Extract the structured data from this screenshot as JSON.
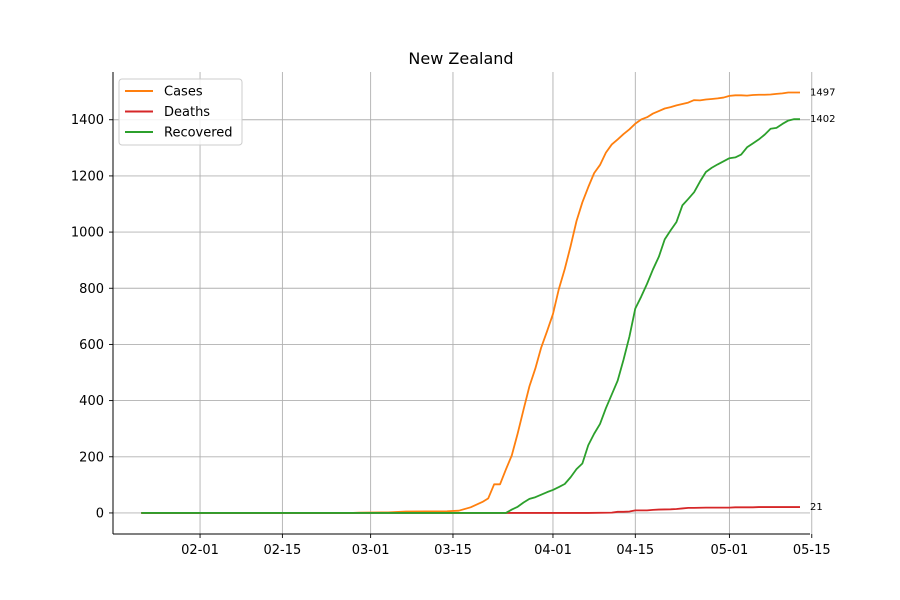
{
  "chart_data": {
    "type": "line",
    "title": "New Zealand",
    "xlabel": "",
    "ylabel": "",
    "grid": true,
    "legend_position": "top-left",
    "x_ticks": [
      "02-01",
      "02-15",
      "03-01",
      "03-15",
      "04-01",
      "04-15",
      "05-01",
      "05-15"
    ],
    "y_ticks": [
      0,
      200,
      400,
      600,
      800,
      1000,
      1200,
      1400
    ],
    "end_labels": [
      "1497",
      "1402",
      "21"
    ],
    "x_range": [
      "2020-01-22",
      "2020-05-14"
    ],
    "ylim": [
      -75,
      1570
    ],
    "series": [
      {
        "name": "Cases",
        "color": "#ff7f0e",
        "points": [
          [
            "2020-01-22",
            0
          ],
          [
            "2020-02-27",
            0
          ],
          [
            "2020-02-28",
            1
          ],
          [
            "2020-03-04",
            2
          ],
          [
            "2020-03-07",
            5
          ],
          [
            "2020-03-14",
            6
          ],
          [
            "2020-03-16",
            8
          ],
          [
            "2020-03-18",
            20
          ],
          [
            "2020-03-20",
            39
          ],
          [
            "2020-03-21",
            52
          ],
          [
            "2020-03-22",
            102
          ],
          [
            "2020-03-23",
            102
          ],
          [
            "2020-03-24",
            155
          ],
          [
            "2020-03-25",
            205
          ],
          [
            "2020-03-26",
            283
          ],
          [
            "2020-03-27",
            368
          ],
          [
            "2020-03-28",
            451
          ],
          [
            "2020-03-29",
            514
          ],
          [
            "2020-03-30",
            589
          ],
          [
            "2020-03-31",
            647
          ],
          [
            "2020-04-01",
            708
          ],
          [
            "2020-04-02",
            797
          ],
          [
            "2020-04-03",
            868
          ],
          [
            "2020-04-04",
            950
          ],
          [
            "2020-04-05",
            1039
          ],
          [
            "2020-04-06",
            1106
          ],
          [
            "2020-04-07",
            1160
          ],
          [
            "2020-04-08",
            1210
          ],
          [
            "2020-04-09",
            1239
          ],
          [
            "2020-04-10",
            1283
          ],
          [
            "2020-04-11",
            1312
          ],
          [
            "2020-04-12",
            1330
          ],
          [
            "2020-04-13",
            1349
          ],
          [
            "2020-04-14",
            1366
          ],
          [
            "2020-04-15",
            1386
          ],
          [
            "2020-04-16",
            1401
          ],
          [
            "2020-04-17",
            1409
          ],
          [
            "2020-04-18",
            1422
          ],
          [
            "2020-04-19",
            1431
          ],
          [
            "2020-04-20",
            1440
          ],
          [
            "2020-04-21",
            1445
          ],
          [
            "2020-04-22",
            1451
          ],
          [
            "2020-04-23",
            1456
          ],
          [
            "2020-04-24",
            1461
          ],
          [
            "2020-04-25",
            1470
          ],
          [
            "2020-04-26",
            1469
          ],
          [
            "2020-04-27",
            1472
          ],
          [
            "2020-04-28",
            1474
          ],
          [
            "2020-04-29",
            1476
          ],
          [
            "2020-04-30",
            1479
          ],
          [
            "2020-05-01",
            1485
          ],
          [
            "2020-05-02",
            1487
          ],
          [
            "2020-05-03",
            1487
          ],
          [
            "2020-05-04",
            1486
          ],
          [
            "2020-05-05",
            1488
          ],
          [
            "2020-05-06",
            1489
          ],
          [
            "2020-05-07",
            1489
          ],
          [
            "2020-05-08",
            1490
          ],
          [
            "2020-05-09",
            1492
          ],
          [
            "2020-05-10",
            1494
          ],
          [
            "2020-05-11",
            1497
          ],
          [
            "2020-05-12",
            1497
          ],
          [
            "2020-05-13",
            1497
          ]
        ]
      },
      {
        "name": "Deaths",
        "color": "#d62728",
        "points": [
          [
            "2020-01-22",
            0
          ],
          [
            "2020-04-07",
            0
          ],
          [
            "2020-04-11",
            1
          ],
          [
            "2020-04-12",
            4
          ],
          [
            "2020-04-13",
            4
          ],
          [
            "2020-04-14",
            5
          ],
          [
            "2020-04-15",
            9
          ],
          [
            "2020-04-17",
            9
          ],
          [
            "2020-04-18",
            11
          ],
          [
            "2020-04-19",
            12
          ],
          [
            "2020-04-21",
            13
          ],
          [
            "2020-04-22",
            14
          ],
          [
            "2020-04-23",
            16
          ],
          [
            "2020-04-24",
            18
          ],
          [
            "2020-04-25",
            18
          ],
          [
            "2020-04-27",
            19
          ],
          [
            "2020-05-01",
            19
          ],
          [
            "2020-05-02",
            20
          ],
          [
            "2020-05-05",
            20
          ],
          [
            "2020-05-06",
            21
          ],
          [
            "2020-05-13",
            21
          ]
        ]
      },
      {
        "name": "Recovered",
        "color": "#2ca02c",
        "points": [
          [
            "2020-01-22",
            0
          ],
          [
            "2020-03-24",
            0
          ],
          [
            "2020-03-25",
            12
          ],
          [
            "2020-03-26",
            22
          ],
          [
            "2020-03-27",
            37
          ],
          [
            "2020-03-28",
            50
          ],
          [
            "2020-03-29",
            56
          ],
          [
            "2020-03-30",
            65
          ],
          [
            "2020-03-31",
            74
          ],
          [
            "2020-04-01",
            82
          ],
          [
            "2020-04-02",
            92
          ],
          [
            "2020-04-03",
            103
          ],
          [
            "2020-04-04",
            127
          ],
          [
            "2020-04-05",
            156
          ],
          [
            "2020-04-06",
            176
          ],
          [
            "2020-04-07",
            241
          ],
          [
            "2020-04-08",
            282
          ],
          [
            "2020-04-09",
            317
          ],
          [
            "2020-04-10",
            373
          ],
          [
            "2020-04-11",
            422
          ],
          [
            "2020-04-12",
            471
          ],
          [
            "2020-04-13",
            546
          ],
          [
            "2020-04-14",
            628
          ],
          [
            "2020-04-15",
            728
          ],
          [
            "2020-04-16",
            770
          ],
          [
            "2020-04-17",
            816
          ],
          [
            "2020-04-18",
            867
          ],
          [
            "2020-04-19",
            912
          ],
          [
            "2020-04-20",
            974
          ],
          [
            "2020-04-21",
            1006
          ],
          [
            "2020-04-22",
            1036
          ],
          [
            "2020-04-23",
            1095
          ],
          [
            "2020-04-24",
            1118
          ],
          [
            "2020-04-25",
            1142
          ],
          [
            "2020-04-26",
            1180
          ],
          [
            "2020-04-27",
            1214
          ],
          [
            "2020-04-28",
            1229
          ],
          [
            "2020-04-29",
            1241
          ],
          [
            "2020-04-30",
            1252
          ],
          [
            "2020-05-01",
            1263
          ],
          [
            "2020-05-02",
            1266
          ],
          [
            "2020-05-03",
            1276
          ],
          [
            "2020-05-04",
            1302
          ],
          [
            "2020-05-05",
            1316
          ],
          [
            "2020-05-06",
            1330
          ],
          [
            "2020-05-07",
            1347
          ],
          [
            "2020-05-08",
            1368
          ],
          [
            "2020-05-09",
            1371
          ],
          [
            "2020-05-10",
            1385
          ],
          [
            "2020-05-11",
            1397
          ],
          [
            "2020-05-12",
            1402
          ],
          [
            "2020-05-13",
            1402
          ]
        ]
      }
    ]
  }
}
